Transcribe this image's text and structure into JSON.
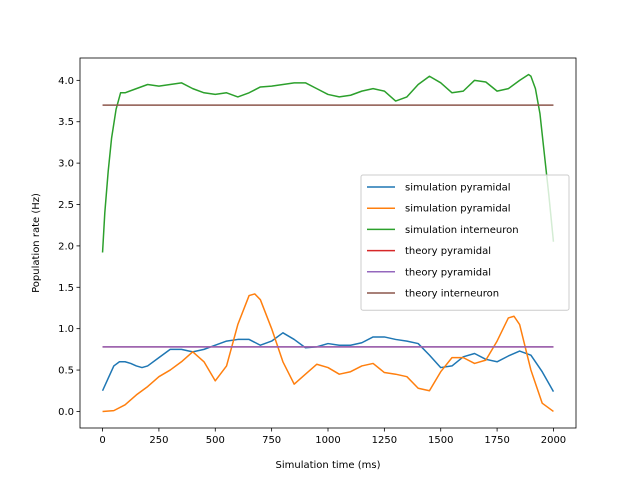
{
  "chart_data": {
    "type": "line",
    "title": "",
    "xlabel": "Simulation time (ms)",
    "ylabel": "Population rate (Hz)",
    "xlim": [
      -100,
      2100
    ],
    "ylim": [
      -0.2,
      4.27
    ],
    "xticks": [
      0,
      250,
      500,
      750,
      1000,
      1250,
      1500,
      1750,
      2000
    ],
    "xtick_labels": [
      "0",
      "250",
      "500",
      "750",
      "1000",
      "1250",
      "1500",
      "1750",
      "2000"
    ],
    "yticks": [
      0.0,
      0.5,
      1.0,
      1.5,
      2.0,
      2.5,
      3.0,
      3.5,
      4.0
    ],
    "ytick_labels": [
      "0.0",
      "0.5",
      "1.0",
      "1.5",
      "2.0",
      "2.5",
      "3.0",
      "3.5",
      "4.0"
    ],
    "grid": false,
    "legend_position": "center-right",
    "series": [
      {
        "name": "simulation pyramidal",
        "color": "#1f77b4",
        "x": [
          0,
          25,
          50,
          75,
          100,
          125,
          150,
          175,
          200,
          250,
          300,
          350,
          400,
          450,
          500,
          550,
          600,
          650,
          700,
          750,
          800,
          850,
          900,
          950,
          1000,
          1050,
          1100,
          1150,
          1200,
          1250,
          1300,
          1350,
          1400,
          1450,
          1500,
          1550,
          1600,
          1650,
          1700,
          1750,
          1800,
          1850,
          1900,
          1950,
          2000
        ],
        "y": [
          0.25,
          0.4,
          0.55,
          0.6,
          0.6,
          0.58,
          0.55,
          0.53,
          0.55,
          0.65,
          0.75,
          0.75,
          0.72,
          0.75,
          0.8,
          0.85,
          0.87,
          0.87,
          0.8,
          0.85,
          0.95,
          0.87,
          0.77,
          0.78,
          0.82,
          0.8,
          0.8,
          0.83,
          0.9,
          0.9,
          0.87,
          0.85,
          0.82,
          0.68,
          0.53,
          0.55,
          0.66,
          0.7,
          0.63,
          0.6,
          0.67,
          0.73,
          0.68,
          0.48,
          0.24
        ]
      },
      {
        "name": "simulation pyramidal",
        "color": "#ff7f0e",
        "x": [
          0,
          50,
          100,
          150,
          200,
          250,
          300,
          350,
          400,
          450,
          500,
          550,
          600,
          650,
          675,
          700,
          750,
          800,
          850,
          900,
          950,
          1000,
          1050,
          1100,
          1150,
          1200,
          1250,
          1300,
          1350,
          1400,
          1450,
          1500,
          1550,
          1600,
          1650,
          1700,
          1750,
          1800,
          1825,
          1850,
          1900,
          1950,
          2000
        ],
        "y": [
          0.0,
          0.01,
          0.08,
          0.2,
          0.3,
          0.42,
          0.5,
          0.6,
          0.72,
          0.6,
          0.37,
          0.55,
          1.05,
          1.4,
          1.42,
          1.35,
          1.0,
          0.6,
          0.33,
          0.45,
          0.57,
          0.53,
          0.45,
          0.48,
          0.55,
          0.58,
          0.47,
          0.45,
          0.42,
          0.28,
          0.25,
          0.48,
          0.65,
          0.65,
          0.58,
          0.62,
          0.85,
          1.13,
          1.15,
          1.05,
          0.5,
          0.1,
          0.0
        ]
      },
      {
        "name": "simulation interneuron",
        "color": "#2ca02c",
        "x": [
          0,
          10,
          25,
          40,
          60,
          80,
          100,
          150,
          200,
          250,
          300,
          350,
          400,
          450,
          500,
          550,
          600,
          650,
          700,
          750,
          800,
          850,
          900,
          950,
          1000,
          1050,
          1100,
          1150,
          1200,
          1250,
          1300,
          1350,
          1400,
          1450,
          1500,
          1550,
          1600,
          1650,
          1700,
          1750,
          1800,
          1850,
          1890,
          1900,
          1920,
          1940,
          1960,
          1980,
          2000
        ],
        "y": [
          1.92,
          2.4,
          2.9,
          3.3,
          3.65,
          3.85,
          3.85,
          3.9,
          3.95,
          3.93,
          3.95,
          3.97,
          3.9,
          3.85,
          3.83,
          3.85,
          3.8,
          3.85,
          3.92,
          3.93,
          3.95,
          3.97,
          3.97,
          3.9,
          3.83,
          3.8,
          3.82,
          3.87,
          3.9,
          3.87,
          3.75,
          3.8,
          3.95,
          4.05,
          3.97,
          3.85,
          3.87,
          4.0,
          3.98,
          3.87,
          3.9,
          4.0,
          4.07,
          4.05,
          3.9,
          3.6,
          3.1,
          2.6,
          2.05
        ]
      },
      {
        "name": "theory pyramidal",
        "color": "#d62728",
        "x": [
          0,
          2000
        ],
        "y": [
          0.78,
          0.78
        ]
      },
      {
        "name": "theory pyramidal",
        "color": "#9467bd",
        "x": [
          0,
          2000
        ],
        "y": [
          0.78,
          0.78
        ]
      },
      {
        "name": "theory interneuron",
        "color": "#8c564b",
        "x": [
          0,
          2000
        ],
        "y": [
          3.7,
          3.7
        ]
      }
    ]
  }
}
